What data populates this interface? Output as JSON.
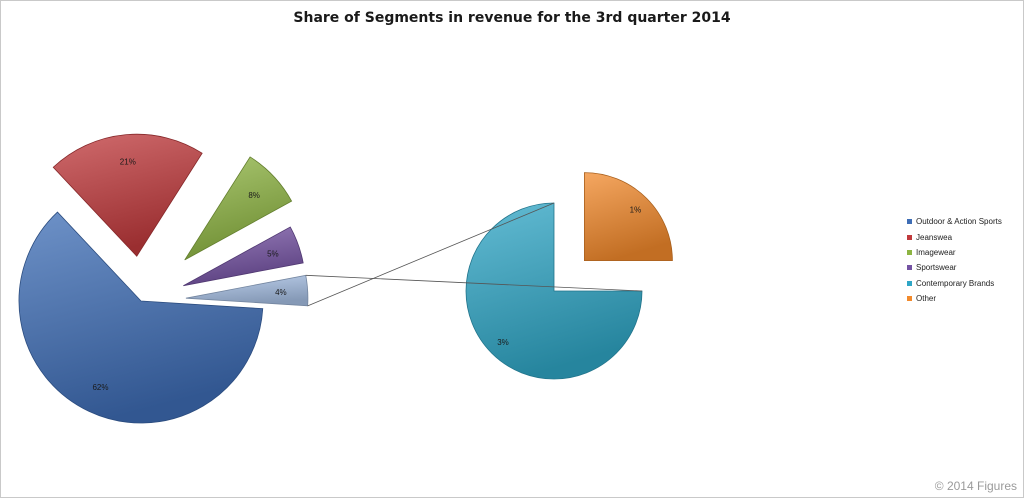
{
  "chart_data": {
    "type": "pie",
    "title": "Share of Segments in revenue for the 3rd quarter 2014",
    "subtype": "pie-of-pie",
    "main_pie": {
      "slices": [
        {
          "name": "Outdoor & Action Sports",
          "label": "62%",
          "value": 62,
          "color": "#3e6db5"
        },
        {
          "name": "Jeanswea",
          "label": "21%",
          "value": 21,
          "color": "#c0393c"
        },
        {
          "name": "Imagewear",
          "label": "8%",
          "value": 8,
          "color": "#8db442"
        },
        {
          "name": "Sportswear",
          "label": "5%",
          "value": 5,
          "color": "#7452a3"
        },
        {
          "name": "Other",
          "label": "4%",
          "value": 4,
          "color": "#a6bfe4"
        }
      ]
    },
    "secondary_pie": {
      "source": "Other",
      "slices": [
        {
          "name": "Contemporary Brands",
          "label": "3%",
          "value": 3,
          "color": "#2fa6c6"
        },
        {
          "name": "Other",
          "label": "1%",
          "value": 1,
          "color": "#f28a2c"
        }
      ]
    },
    "legend": {
      "placement": "right",
      "entries": [
        {
          "label": "Outdoor & Action Sports",
          "color": "#3e6db5"
        },
        {
          "label": "Jeanswea",
          "color": "#c0393c"
        },
        {
          "label": "Imagewear",
          "color": "#8db442"
        },
        {
          "label": "Sportswear",
          "color": "#7452a3"
        },
        {
          "label": "Contemporary Brands",
          "color": "#2fa6c6"
        },
        {
          "label": "Other",
          "color": "#f28a2c"
        }
      ]
    }
  },
  "footer": {
    "text": "© 2014 Figures"
  }
}
